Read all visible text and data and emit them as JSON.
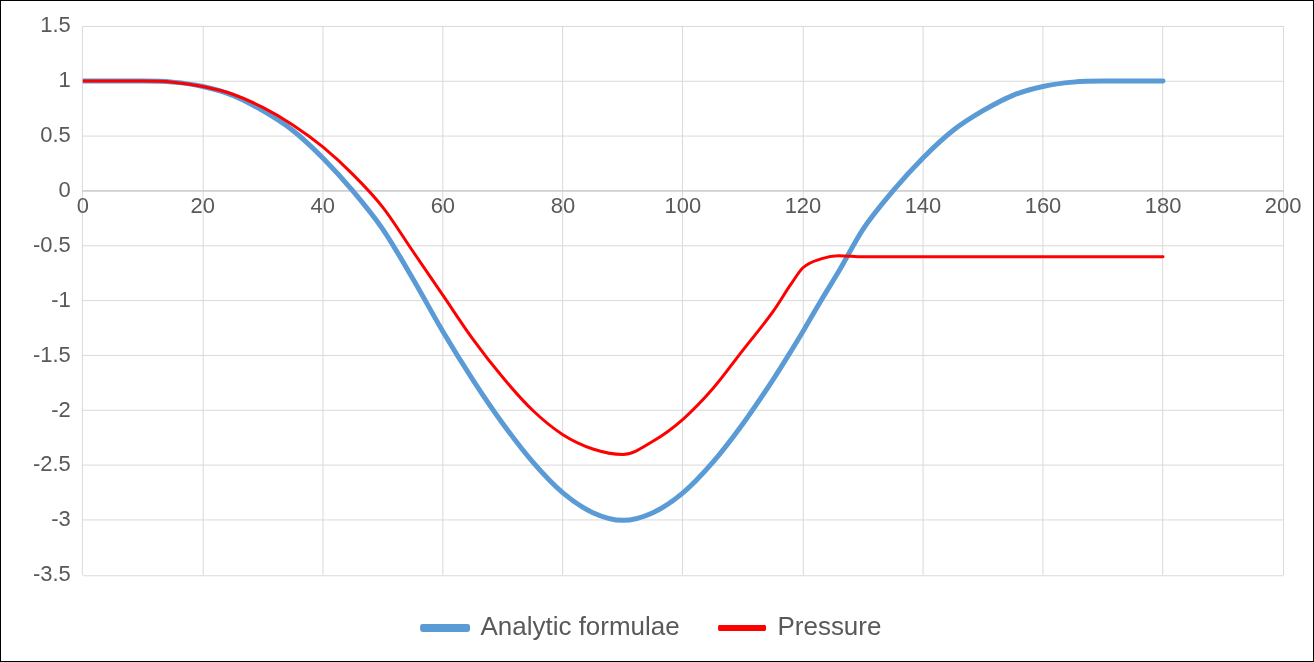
{
  "chart_data": {
    "type": "line",
    "x": [
      0,
      5,
      10,
      15,
      20,
      25,
      30,
      35,
      40,
      45,
      50,
      55,
      60,
      65,
      70,
      75,
      80,
      85,
      90,
      95,
      100,
      105,
      110,
      115,
      118,
      120,
      123,
      126,
      130,
      135,
      140,
      145,
      150,
      155,
      160,
      165,
      170,
      175,
      180
    ],
    "series": [
      {
        "name": "Analytic formulae",
        "color": "#5b9bd5",
        "values": [
          1,
          1,
          1,
          0.99,
          0.95,
          0.87,
          0.73,
          0.55,
          0.3,
          0.0,
          -0.35,
          -0.8,
          -1.28,
          -1.72,
          -2.12,
          -2.47,
          -2.75,
          -2.93,
          -3,
          -2.93,
          -2.75,
          -2.47,
          -2.12,
          -1.72,
          -1.46,
          -1.28,
          -1.0,
          -0.73,
          -0.35,
          0.0,
          0.3,
          0.55,
          0.73,
          0.87,
          0.95,
          0.99,
          1,
          1,
          1
        ]
      },
      {
        "name": "Pressure",
        "color": "#ff0000",
        "values": [
          1,
          1,
          1,
          0.99,
          0.95,
          0.88,
          0.76,
          0.6,
          0.4,
          0.15,
          -0.15,
          -0.55,
          -0.95,
          -1.35,
          -1.7,
          -2.0,
          -2.22,
          -2.35,
          -2.4,
          -2.28,
          -2.08,
          -1.8,
          -1.45,
          -1.1,
          -0.85,
          -0.7,
          -0.62,
          -0.59,
          -0.6,
          -0.6,
          -0.6,
          -0.6,
          -0.6,
          -0.6,
          -0.6,
          -0.6,
          -0.6,
          -0.6,
          -0.6
        ]
      }
    ],
    "xlim": [
      0,
      200
    ],
    "xticks": [
      0,
      20,
      40,
      60,
      80,
      100,
      120,
      140,
      160,
      180,
      200
    ],
    "ylim": [
      -3.5,
      1.5
    ],
    "yticks": [
      -3.5,
      -3,
      -2.5,
      -2,
      -1.5,
      -1,
      -0.5,
      0,
      0.5,
      1,
      1.5
    ],
    "grid": true,
    "legend": "bottom",
    "marker": "none"
  }
}
